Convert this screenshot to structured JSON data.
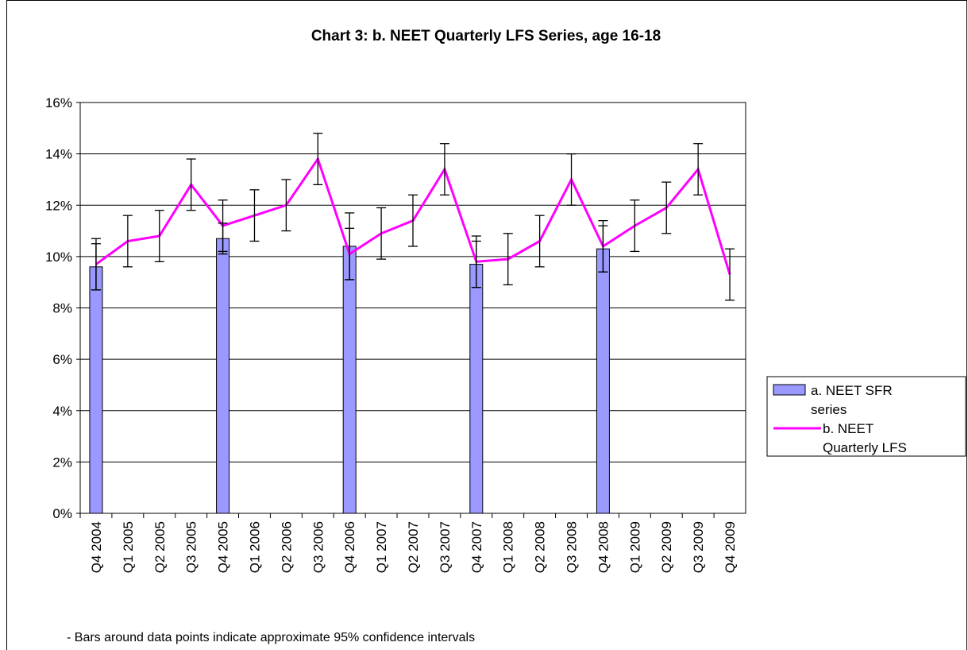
{
  "chart_data": {
    "type": "bar-line",
    "title": "Chart 3: b. NEET Quarterly LFS Series, age 16-18",
    "footnote": "- Bars around data points indicate approximate 95% confidence intervals",
    "categories": [
      "Q4 2004",
      "Q1 2005",
      "Q2 2005",
      "Q3 2005",
      "Q4 2005",
      "Q1 2006",
      "Q2 2006",
      "Q3 2006",
      "Q4 2006",
      "Q1 2007",
      "Q2 2007",
      "Q3 2007",
      "Q4 2007",
      "Q1 2008",
      "Q2 2008",
      "Q3 2008",
      "Q4 2008",
      "Q1 2009",
      "Q2 2009",
      "Q3 2009",
      "Q4 2009"
    ],
    "series": [
      {
        "name": "a. NEET SFR series",
        "type": "bar",
        "color": "#9999ff",
        "values": [
          9.6,
          null,
          null,
          null,
          10.7,
          null,
          null,
          null,
          10.4,
          null,
          null,
          null,
          9.7,
          null,
          null,
          null,
          10.3,
          null,
          null,
          null,
          null
        ],
        "errors": [
          0.9,
          null,
          null,
          null,
          0.6,
          null,
          null,
          null,
          1.3,
          null,
          null,
          null,
          0.9,
          null,
          null,
          null,
          0.9,
          null,
          null,
          null,
          null
        ]
      },
      {
        "name": "b. NEET Quarterly LFS",
        "type": "line",
        "color": "#ff00ff",
        "values": [
          9.7,
          10.6,
          10.8,
          12.8,
          11.2,
          11.6,
          12.0,
          13.8,
          10.1,
          10.9,
          11.4,
          13.4,
          9.8,
          9.9,
          10.6,
          13.0,
          10.4,
          11.2,
          11.9,
          13.4,
          9.3
        ],
        "errors": [
          1.0,
          1.0,
          1.0,
          1.0,
          1.0,
          1.0,
          1.0,
          1.0,
          1.0,
          1.0,
          1.0,
          1.0,
          1.0,
          1.0,
          1.0,
          1.0,
          1.0,
          1.0,
          1.0,
          1.0,
          1.0
        ]
      }
    ],
    "ylim": [
      0,
      16
    ],
    "yticks": [
      {
        "value": 0,
        "label": "0%"
      },
      {
        "value": 2,
        "label": "2%"
      },
      {
        "value": 4,
        "label": "4%"
      },
      {
        "value": 6,
        "label": "6%"
      },
      {
        "value": 8,
        "label": "8%"
      },
      {
        "value": 10,
        "label": "10%"
      },
      {
        "value": 12,
        "label": "12%"
      },
      {
        "value": 14,
        "label": "14%"
      },
      {
        "value": 16,
        "label": "16%"
      }
    ],
    "grid": true,
    "legend": "right"
  }
}
